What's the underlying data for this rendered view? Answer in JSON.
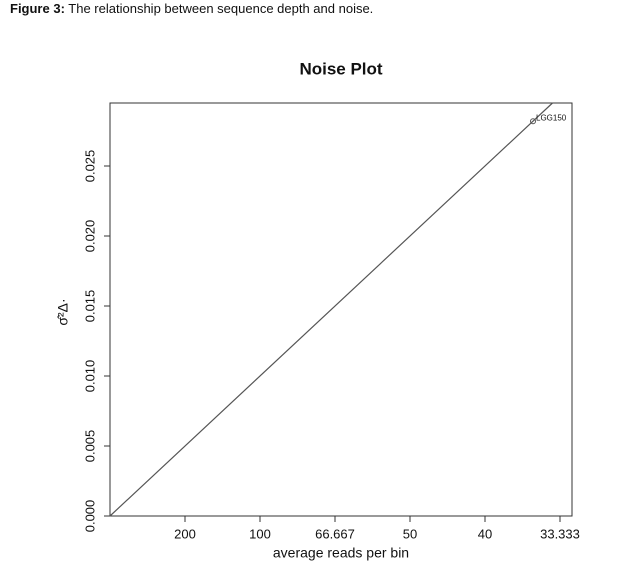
{
  "caption": {
    "label": "Figure 3:",
    "text": "The relationship between sequence depth and noise."
  },
  "chart_data": {
    "type": "line",
    "title": "Noise Plot",
    "x_label": "average reads per bin",
    "y_label": "σ̂²Δ·",
    "xlim": [
      0,
      0.0308
    ],
    "ylim": [
      0,
      0.0295
    ],
    "xticks": [
      {
        "value": 0.005,
        "label": "200"
      },
      {
        "value": 0.01,
        "label": "100"
      },
      {
        "value": 0.015,
        "label": "66.667"
      },
      {
        "value": 0.02,
        "label": "50"
      },
      {
        "value": 0.025,
        "label": "40"
      },
      {
        "value": 0.03,
        "label": "33.333"
      }
    ],
    "yticks": [
      {
        "value": 0,
        "label": "0.000"
      },
      0.005,
      {
        "value": 0.01,
        "label": "0.010"
      },
      0.015,
      {
        "value": 0.02,
        "label": "0.020"
      },
      0.025
    ],
    "series": [
      {
        "color": "#555555",
        "x": [
          0,
          0.0295
        ],
        "values": [
          0,
          0.0295
        ]
      }
    ],
    "points": [
      {
        "label": "LGG150",
        "x": 0.0282,
        "y": 0.0282,
        "color": "#555555"
      }
    ]
  }
}
